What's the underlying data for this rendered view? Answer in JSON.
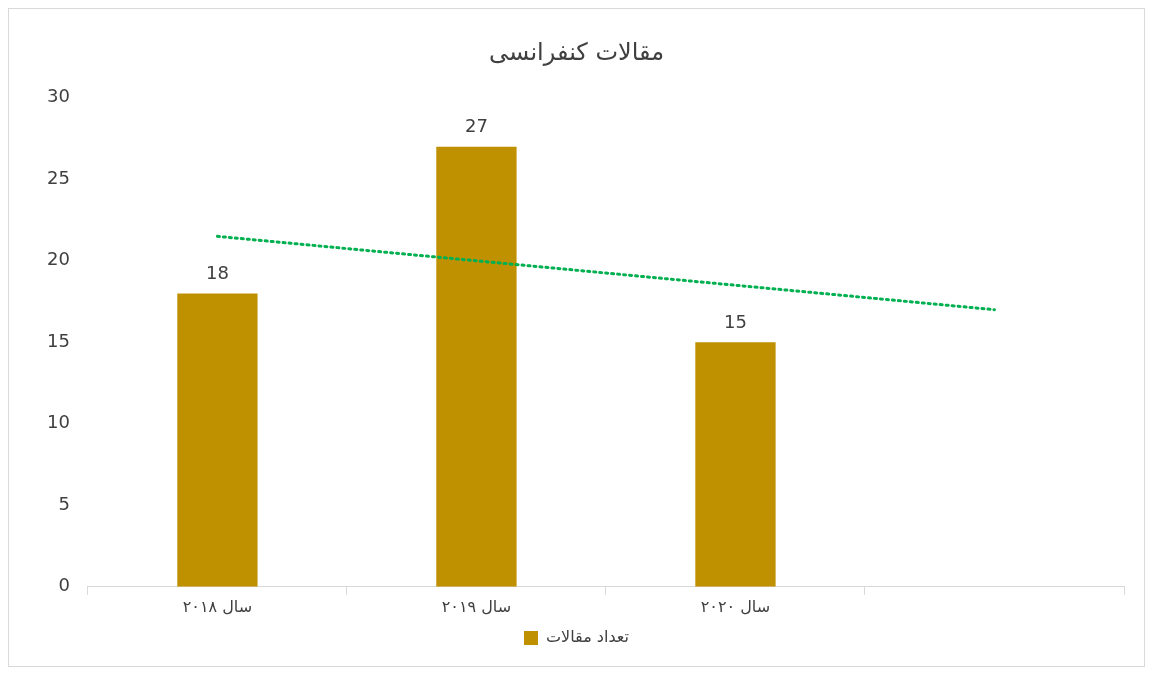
{
  "chart_data": {
    "type": "bar",
    "title": "مقالات کنفرانسی",
    "categories": [
      "سال ۲۰۱۸",
      "سال ۲۰۱۹",
      "سال ۲۰۲۰",
      null
    ],
    "series": [
      {
        "name": "تعداد مقالات",
        "color": "#bf9000",
        "values": [
          18,
          27,
          15,
          null
        ],
        "value_labels": [
          "18",
          "27",
          "15",
          null
        ]
      },
      {
        "type": "line",
        "color": "#00b050",
        "line_style": "dotted",
        "marker": "none",
        "values": [
          21.5,
          20,
          18.5,
          17
        ]
      }
    ],
    "ylim": [
      0,
      30
    ],
    "yticks": [
      0,
      5,
      10,
      15,
      20,
      25,
      30
    ],
    "grid": false,
    "legend": "bottom"
  }
}
